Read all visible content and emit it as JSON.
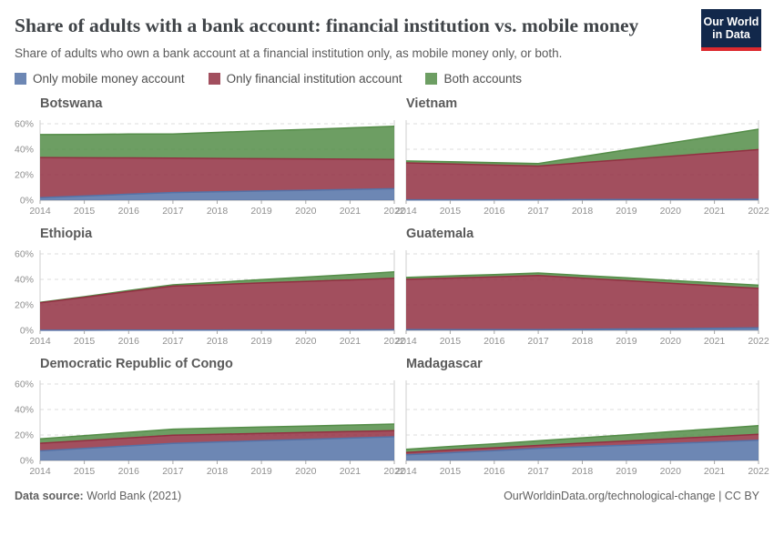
{
  "header": {
    "title": "Share of adults with a bank account: financial institution vs. mobile money",
    "subtitle": "Share of adults who own a bank account at a financial institution only, as mobile money only, or both.",
    "logo": {
      "line1": "Our World",
      "line2": "in Data",
      "bg_color": "#12284b",
      "stripe_color": "#dc2a2f"
    }
  },
  "legend": [
    {
      "label": "Only mobile money account",
      "color": "#5472a7"
    },
    {
      "label": "Only financial institution account",
      "color": "#923042"
    },
    {
      "label": "Both accounts",
      "color": "#548d48"
    }
  ],
  "chart_data": {
    "type": "area",
    "stacked": true,
    "unit": "%",
    "x": [
      2014,
      2015,
      2016,
      2017,
      2018,
      2019,
      2020,
      2021,
      2022
    ],
    "y_axis": {
      "ticks": [
        0,
        20,
        40,
        60
      ],
      "tick_labels": [
        "0%",
        "20%",
        "40%",
        "60%"
      ],
      "grid": "dashed",
      "ylim": [
        0,
        67
      ]
    },
    "series_labels": [
      "Only mobile money account",
      "Only financial institution account",
      "Both accounts"
    ],
    "colors": {
      "mobile_only": "#5472a7",
      "fi_only": "#923042",
      "both": "#548d48"
    },
    "fill_opacity": 0.85,
    "countries": [
      {
        "name": "Botswana",
        "mobile_only": [
          2,
          3.3,
          4.7,
          6,
          6.6,
          7.2,
          7.8,
          8.4,
          9
        ],
        "fi_only": [
          31.5,
          30,
          28.5,
          27,
          26.2,
          25.4,
          24.6,
          23.8,
          23
        ],
        "both": [
          18,
          18.3,
          18.7,
          19,
          20.4,
          21.8,
          23.2,
          24.6,
          26
        ]
      },
      {
        "name": "Vietnam",
        "mobile_only": [
          0.3,
          0.3,
          0.3,
          0.3,
          0.4,
          0.5,
          0.5,
          0.6,
          0.7
        ],
        "fi_only": [
          29,
          28.2,
          27.3,
          26.5,
          29,
          31.5,
          34,
          36.5,
          39
        ],
        "both": [
          1.5,
          1.7,
          1.8,
          2,
          4.8,
          7.6,
          10.4,
          13.2,
          16
        ]
      },
      {
        "name": "Ethiopia",
        "mobile_only": [
          0.1,
          0.1,
          0.2,
          0.2,
          0.2,
          0.3,
          0.3,
          0.3,
          0.4
        ],
        "fi_only": [
          21.5,
          25.8,
          30.2,
          34.5,
          35.7,
          36.9,
          38.1,
          39.3,
          40.5
        ],
        "both": [
          0.3,
          0.5,
          0.8,
          1,
          1.8,
          2.6,
          3.4,
          4.2,
          5
        ]
      },
      {
        "name": "Guatemala",
        "mobile_only": [
          0.5,
          0.5,
          0.5,
          0.5,
          0.8,
          1.1,
          1.3,
          1.6,
          1.9
        ],
        "fi_only": [
          39.5,
          40.5,
          41.5,
          42.5,
          40.2,
          37.9,
          35.6,
          33.3,
          31
        ],
        "both": [
          1.5,
          1.7,
          1.8,
          2,
          2.1,
          2.2,
          2.3,
          2.4,
          2.5
        ]
      },
      {
        "name": "Democratic Republic of Congo",
        "mobile_only": [
          7.5,
          9.5,
          11.4,
          13.4,
          14.4,
          15.5,
          16.5,
          17.6,
          18.6
        ],
        "fi_only": [
          6,
          6.1,
          6.3,
          6.4,
          6.1,
          5.8,
          5.4,
          5.1,
          4.8
        ],
        "both": [
          3.5,
          3.9,
          4.4,
          4.8,
          4.9,
          5,
          5,
          5.1,
          5.2
        ]
      },
      {
        "name": "Madagascar",
        "mobile_only": [
          4.4,
          6.1,
          7.7,
          9.4,
          10.7,
          12,
          13.3,
          14.6,
          15.9
        ],
        "fi_only": [
          1.9,
          2.1,
          2.2,
          2.4,
          2.9,
          3.3,
          3.8,
          4.2,
          4.7
        ],
        "both": [
          2.4,
          2.8,
          3.2,
          3.6,
          4.2,
          4.8,
          5.5,
          6.1,
          6.7
        ]
      }
    ]
  },
  "footer": {
    "source_label": "Data source:",
    "source_value": " World Bank (2021)",
    "right_text": "OurWorldinData.org/technological-change | CC BY"
  }
}
